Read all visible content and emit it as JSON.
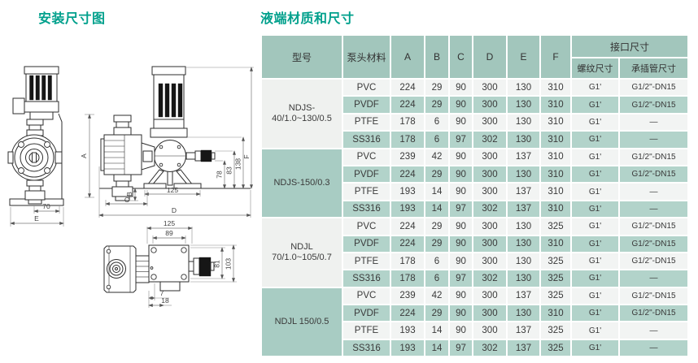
{
  "left": {
    "title": "安装尺寸图"
  },
  "right": {
    "title": "液端材质和尺寸"
  },
  "diagram": {
    "front": {
      "width70": "70",
      "dimE": "E"
    },
    "side": {
      "dimA": "A",
      "dimB": "B",
      "dimC": "C",
      "dimD": "D",
      "feet125": "125",
      "h78": "78",
      "h83": "83",
      "h138": "138",
      "dimF": "F"
    },
    "top": {
      "w125": "125",
      "w89": "89",
      "h81": "81",
      "h103": "103",
      "o7": "7",
      "o18": "18"
    }
  },
  "table": {
    "header": {
      "model": "型号",
      "material": "泵头材料",
      "dims": [
        "A",
        "B",
        "C",
        "D",
        "E",
        "F"
      ],
      "interface_group": "接口尺寸",
      "thread": "螺纹尺寸",
      "socket": "承插管尺寸"
    },
    "groups": [
      {
        "model_lines": [
          "NDJS-",
          "40/1.0~130/0.5"
        ],
        "rows": [
          {
            "material": "PVC",
            "values": [
              224,
              29,
              90,
              300,
              130,
              310
            ],
            "thread": "G1'",
            "socket": "G1/2\"-DN15"
          },
          {
            "material": "PVDF",
            "values": [
              224,
              29,
              90,
              300,
              130,
              310
            ],
            "thread": "G1'",
            "socket": "G1/2\"-DN15"
          },
          {
            "material": "PTFE",
            "values": [
              178,
              6,
              90,
              300,
              130,
              310
            ],
            "thread": "G1'",
            "socket": "—"
          },
          {
            "material": "SS316",
            "values": [
              178,
              6,
              97,
              302,
              130,
              310
            ],
            "thread": "G1'",
            "socket": "—"
          }
        ]
      },
      {
        "model_lines": [
          "NDJS-150/0.3"
        ],
        "rows": [
          {
            "material": "PVC",
            "values": [
              239,
              42,
              90,
              300,
              137,
              310
            ],
            "thread": "G1'",
            "socket": "G1/2\"-DN15"
          },
          {
            "material": "PVDF",
            "values": [
              224,
              29,
              90,
              300,
              130,
              310
            ],
            "thread": "G1'",
            "socket": "G1/2\"-DN15"
          },
          {
            "material": "PTFE",
            "values": [
              193,
              14,
              90,
              300,
              137,
              310
            ],
            "thread": "G1'",
            "socket": "—"
          },
          {
            "material": "SS316",
            "values": [
              193,
              14,
              97,
              302,
              137,
              310
            ],
            "thread": "G1'",
            "socket": "—"
          }
        ]
      },
      {
        "model_lines": [
          "NDJL",
          "70/1.0~105/0.7"
        ],
        "rows": [
          {
            "material": "PVC",
            "values": [
              224,
              29,
              90,
              300,
              130,
              325
            ],
            "thread": "G1'",
            "socket": "G1/2\"-DN15"
          },
          {
            "material": "PVDF",
            "values": [
              224,
              29,
              90,
              300,
              130,
              310
            ],
            "thread": "G1'",
            "socket": "G1/2\"-DN15"
          },
          {
            "material": "PTFE",
            "values": [
              178,
              6,
              90,
              300,
              130,
              325
            ],
            "thread": "G1'",
            "socket": "G1/2\"-DN15"
          },
          {
            "material": "SS316",
            "values": [
              178,
              6,
              97,
              302,
              130,
              325
            ],
            "thread": "G1'",
            "socket": "—"
          }
        ]
      },
      {
        "model_lines": [
          "NDJL 150/0.5"
        ],
        "rows": [
          {
            "material": "PVC",
            "values": [
              239,
              42,
              90,
              300,
              137,
              325
            ],
            "thread": "G1'",
            "socket": "G1/2\"-DN15"
          },
          {
            "material": "PVDF",
            "values": [
              224,
              29,
              90,
              300,
              130,
              310
            ],
            "thread": "G1'",
            "socket": "G1/2\"-DN15"
          },
          {
            "material": "PTFE",
            "values": [
              193,
              14,
              90,
              300,
              137,
              325
            ],
            "thread": "G1'",
            "socket": "—"
          },
          {
            "material": "SS316",
            "values": [
              193,
              14,
              97,
              302,
              137,
              325
            ],
            "thread": "G1'",
            "socket": "—"
          }
        ]
      }
    ]
  }
}
